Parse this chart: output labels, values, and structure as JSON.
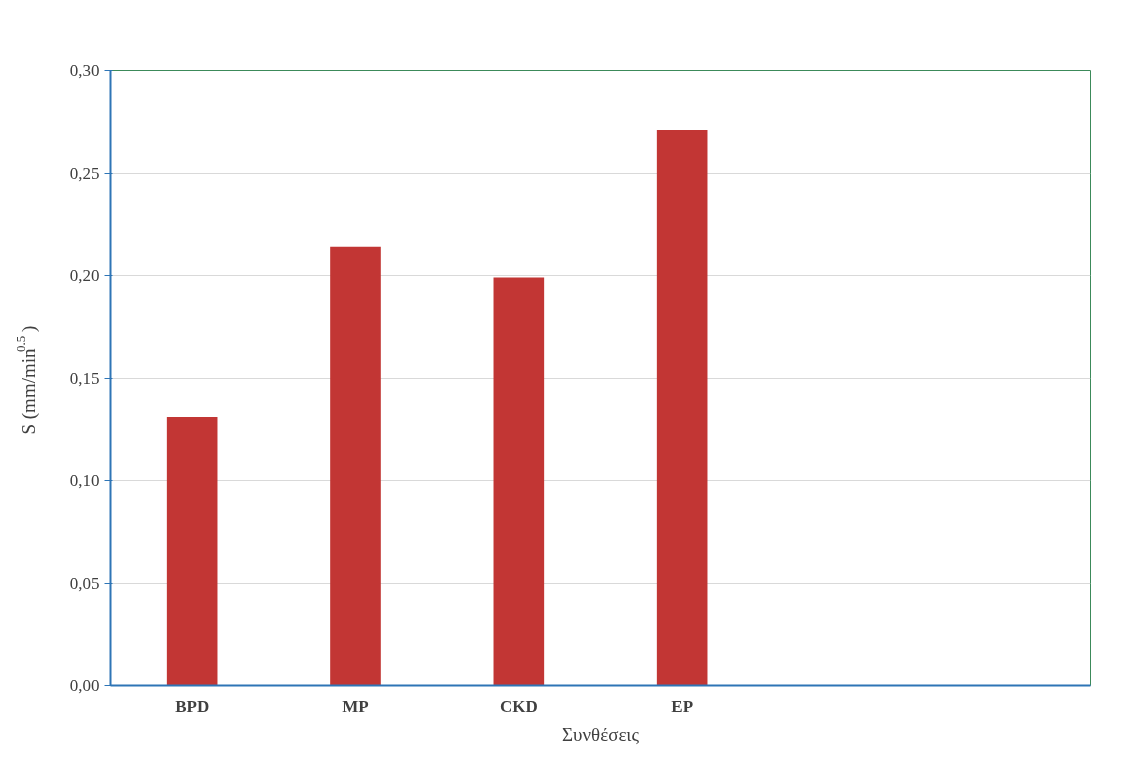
{
  "chart_data": {
    "type": "bar",
    "xlabel": "Συνθέσεις",
    "ylabel": "S (mm/min$^{0.5}$)",
    "categories": [
      "BPD",
      "MP",
      "CKD",
      "EP",
      null,
      null
    ],
    "values": [
      0.131,
      0.214,
      0.199,
      0.271,
      null,
      null
    ],
    "color": "#c23634",
    "ylim": [
      0,
      0.3
    ],
    "yticks": [
      {
        "value": 0,
        "label": "0,00"
      },
      {
        "value": 0.05,
        "label": "0,05"
      },
      {
        "value": 0.1,
        "label": "0,10"
      },
      {
        "value": 0.15,
        "label": "0,15"
      },
      {
        "value": 0.2,
        "label": "0,20"
      },
      {
        "value": 0.25,
        "label": "0,25"
      },
      {
        "value": 0.3,
        "label": "0,30"
      }
    ],
    "grid": "y"
  }
}
